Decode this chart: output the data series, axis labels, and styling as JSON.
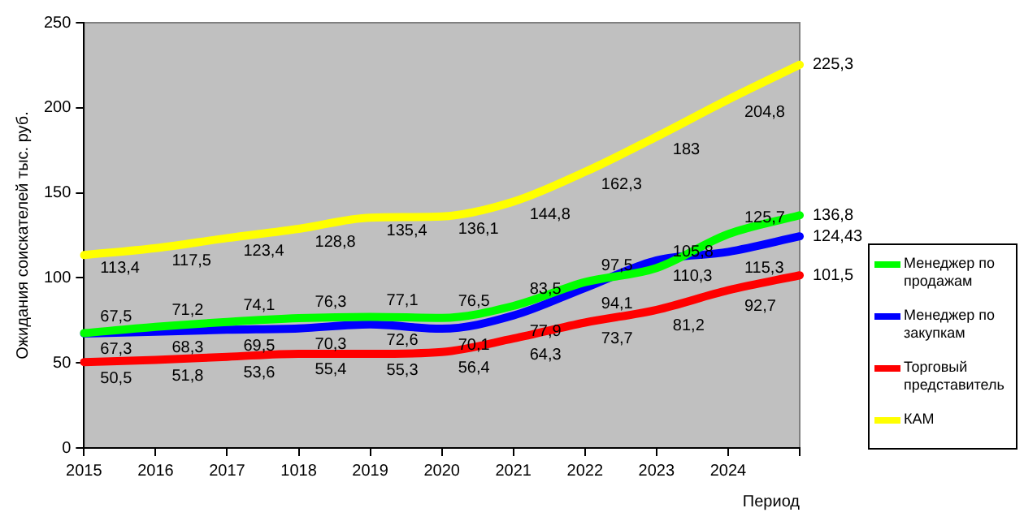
{
  "chart_data": {
    "type": "line",
    "xlabel": "Период",
    "ylabel": "Ожидания соискателей тыс. руб.",
    "categories": [
      "2015",
      "2016",
      "2017",
      "1018",
      "2019",
      "2020",
      "2021",
      "2022",
      "2023",
      "2024",
      null
    ],
    "ylim": [
      0,
      250
    ],
    "yticks": [
      0,
      50,
      100,
      150,
      200,
      250
    ],
    "grid": false,
    "legend": "right",
    "marker": "none",
    "line_style": "solid",
    "series": [
      {
        "name": "Менеджер по продажам",
        "color": "#00ff00",
        "values": [
          67.5,
          71.2,
          74.1,
          76.3,
          77.1,
          76.5,
          83.5,
          97.5,
          105.8,
          125.7,
          136.8
        ],
        "value_labels": [
          "67,5",
          "71,2",
          "74,1",
          "76,3",
          "77,1",
          "76,5",
          "83,5",
          "97,5",
          "105,8",
          "125,7",
          "136,8"
        ]
      },
      {
        "name": "Менеджер по закупкам",
        "color": "#0000ff",
        "values": [
          67.3,
          68.3,
          69.5,
          70.3,
          72.6,
          70.1,
          77.9,
          94.1,
          110.3,
          115.3,
          124.43
        ],
        "value_labels": [
          "67,3",
          "68,3",
          "69,5",
          "70,3",
          "72,6",
          "70,1",
          "77,9",
          "94,1",
          "110,3",
          "115,3",
          "124,43"
        ]
      },
      {
        "name": "Торговый представитель",
        "color": "#ff0000",
        "values": [
          50.5,
          51.8,
          53.6,
          55.4,
          55.3,
          56.4,
          64.3,
          73.7,
          81.2,
          92.7,
          101.5
        ],
        "value_labels": [
          "50,5",
          "51,8",
          "53,6",
          "55,4",
          "55,3",
          "56,4",
          "64,3",
          "73,7",
          "81,2",
          "92,7",
          "101,5"
        ]
      },
      {
        "name": "КАМ",
        "color": "#ffff00",
        "values": [
          113.4,
          117.5,
          123.4,
          128.8,
          135.4,
          136.1,
          144.8,
          162.3,
          183,
          204.8,
          225.3
        ],
        "value_labels": [
          "113,4",
          "117,5",
          "123,4",
          "128,8",
          "135,4",
          "136,1",
          "144,8",
          "162,3",
          "183",
          "204,8",
          "225,3"
        ]
      }
    ]
  }
}
